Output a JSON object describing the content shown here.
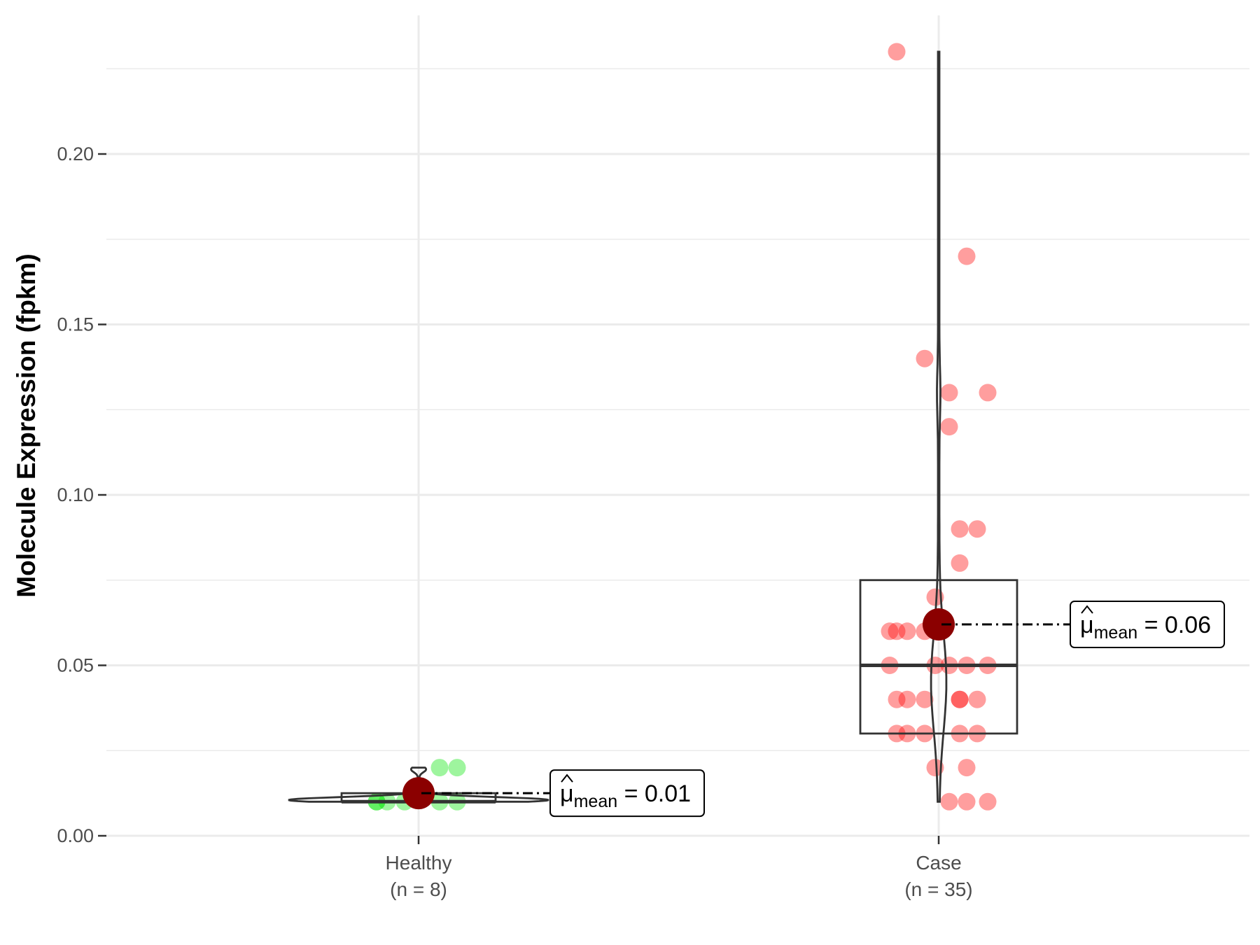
{
  "chart_data": {
    "type": "violin-box-scatter",
    "title": "",
    "ylabel": "Molecule Expression (fpkm)",
    "xlabel": "",
    "ylim": [
      0,
      0.235
    ],
    "yticks": [
      0.0,
      0.05,
      0.1,
      0.15,
      0.2
    ],
    "ytick_labels": [
      "0.00",
      "0.05",
      "0.10",
      "0.15",
      "0.20"
    ],
    "grid": true,
    "mean_color": "#8b0000",
    "groups": [
      {
        "name": "Healthy",
        "n_label": "(n = 8)",
        "color": "#00e600",
        "points": [
          0.01,
          0.01,
          0.01,
          0.01,
          0.01,
          0.01,
          0.02,
          0.02
        ],
        "box": {
          "q1": 0.01,
          "median": 0.01,
          "q3": 0.0125
        },
        "violin": {
          "min": 0.01,
          "max": 0.02
        },
        "mean": 0.0125,
        "mean_label": "0.01",
        "mean_symbol": "μ",
        "mean_subscript": "mean"
      },
      {
        "name": "Case",
        "n_label": "(n = 35)",
        "color": "#ff0000",
        "points": [
          0.23,
          0.17,
          0.14,
          0.13,
          0.13,
          0.12,
          0.09,
          0.09,
          0.08,
          0.07,
          0.06,
          0.06,
          0.06,
          0.05,
          0.05,
          0.05,
          0.05,
          0.05,
          0.04,
          0.04,
          0.04,
          0.04,
          0.04,
          0.04,
          0.03,
          0.03,
          0.03,
          0.03,
          0.03,
          0.02,
          0.02,
          0.01,
          0.01,
          0.01,
          0.06
        ],
        "box": {
          "q1": 0.03,
          "median": 0.05,
          "q3": 0.075
        },
        "violin": {
          "min": 0.01,
          "max": 0.23
        },
        "mean": 0.062,
        "mean_label": "0.06",
        "mean_symbol": "μ",
        "mean_subscript": "mean"
      }
    ]
  }
}
